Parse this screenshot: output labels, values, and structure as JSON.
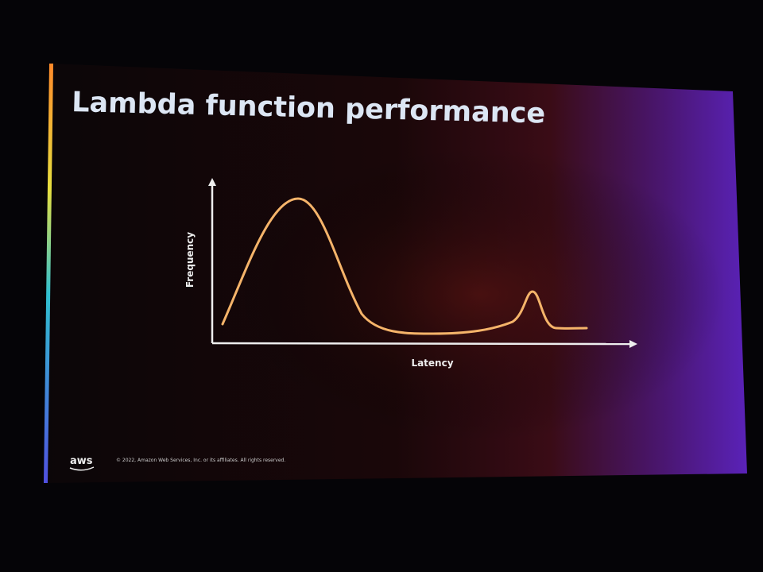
{
  "slide": {
    "title": "Lambda function performance",
    "y_axis_label": "Frequency",
    "x_axis_label": "Latency",
    "logo": "aws",
    "footer": "© 2022, Amazon Web Services, Inc. or its affiliates. All rights reserved."
  }
}
